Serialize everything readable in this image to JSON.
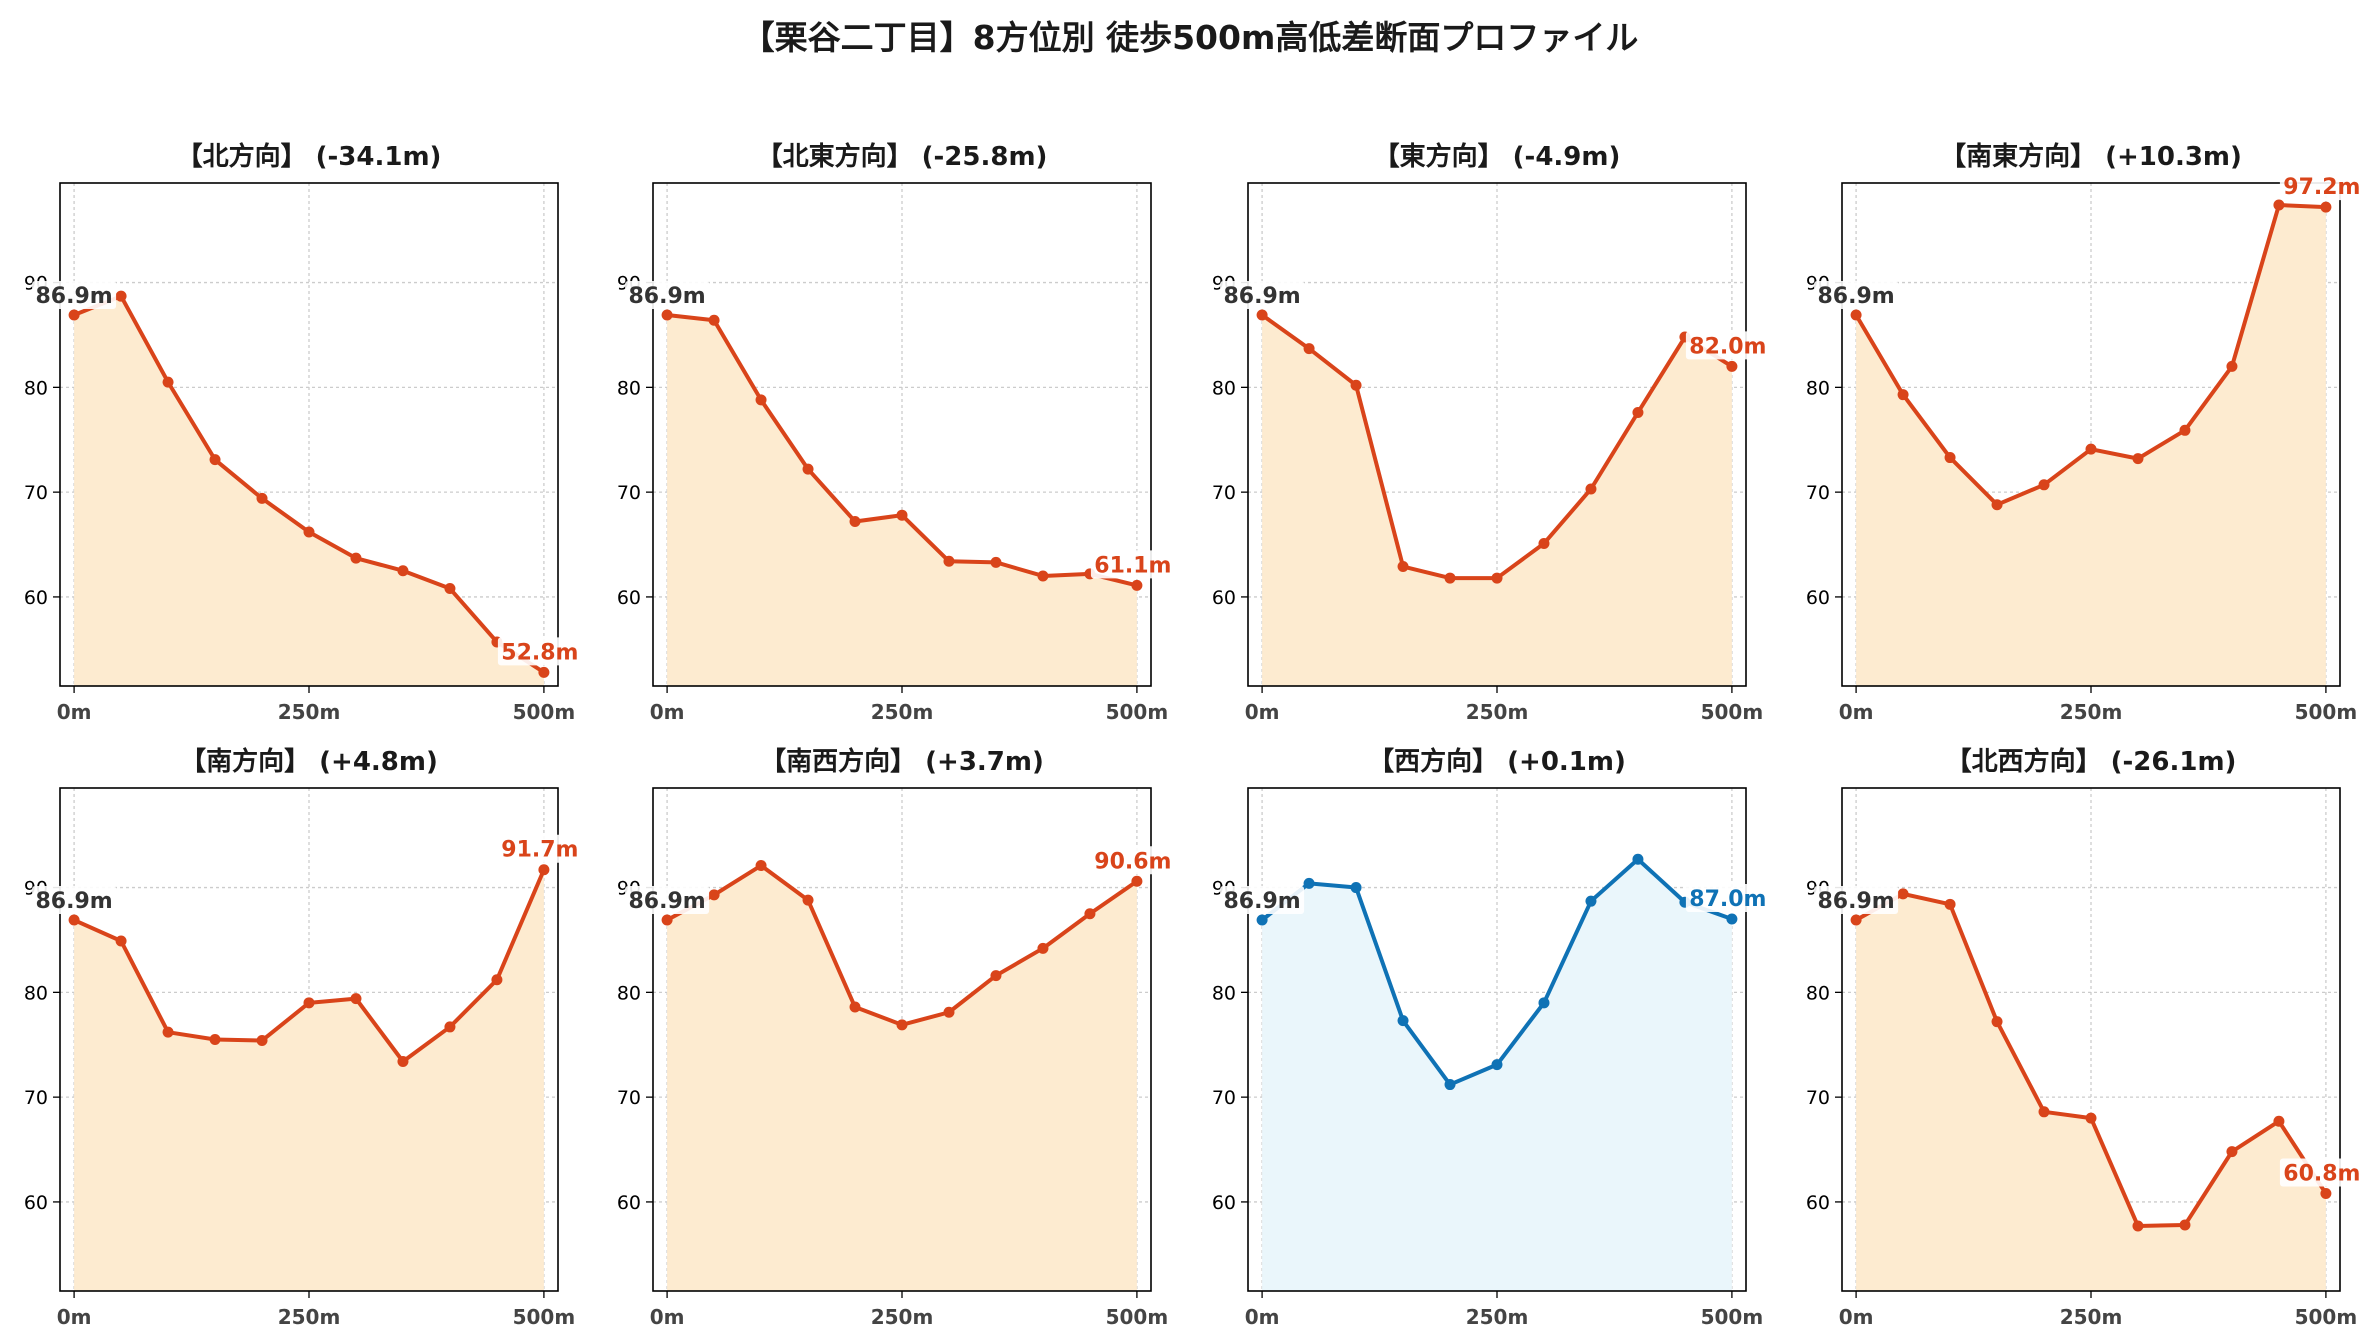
{
  "title": "【栗谷二丁目】8方位別 徒歩500m高低差断面プロファイル",
  "colors": {
    "downhill_line": "#d9441a",
    "downhill_fill": "#fdebd0",
    "flat_line": "#0f72b5",
    "flat_fill": "#eaf6fb",
    "start_label": "#333333",
    "grid": "#cccccc"
  },
  "chart_data": [
    {
      "type": "line",
      "title": "【北方向】 (-34.1m)",
      "style": "warm",
      "x": [
        0,
        50,
        100,
        150,
        200,
        250,
        300,
        350,
        400,
        450,
        500
      ],
      "values": [
        86.9,
        88.7,
        80.5,
        73.1,
        69.4,
        66.2,
        63.7,
        62.5,
        60.8,
        55.7,
        52.8
      ],
      "start_label": "86.9m",
      "end_label": "52.8m",
      "xticks": [
        0,
        250,
        500
      ],
      "xtick_labels": [
        "0m",
        "250m",
        "500m"
      ],
      "yticks": [
        60,
        70,
        80,
        90
      ],
      "ytick_labels": [
        "60",
        "70",
        "80",
        "90"
      ],
      "ylim": [
        51.5,
        99.5
      ],
      "xlim": [
        -15,
        515
      ],
      "grid": true
    },
    {
      "type": "line",
      "title": "【北東方向】 (-25.8m)",
      "style": "warm",
      "x": [
        0,
        50,
        100,
        150,
        200,
        250,
        300,
        350,
        400,
        450,
        500
      ],
      "values": [
        86.9,
        86.4,
        78.8,
        72.2,
        67.2,
        67.8,
        63.4,
        63.3,
        62.0,
        62.2,
        61.1
      ],
      "start_label": "86.9m",
      "end_label": "61.1m",
      "xticks": [
        0,
        250,
        500
      ],
      "xtick_labels": [
        "0m",
        "250m",
        "500m"
      ],
      "yticks": [
        60,
        70,
        80,
        90
      ],
      "ytick_labels": [
        "60",
        "70",
        "80",
        "90"
      ],
      "ylim": [
        51.5,
        99.5
      ],
      "xlim": [
        -15,
        515
      ],
      "grid": true
    },
    {
      "type": "line",
      "title": "【東方向】 (-4.9m)",
      "style": "warm",
      "x": [
        0,
        50,
        100,
        150,
        200,
        250,
        300,
        350,
        400,
        450,
        500
      ],
      "values": [
        86.9,
        83.7,
        80.2,
        62.9,
        61.8,
        61.8,
        65.1,
        70.3,
        77.6,
        84.8,
        82.0
      ],
      "start_label": "86.9m",
      "end_label": "82.0m",
      "xticks": [
        0,
        250,
        500
      ],
      "xtick_labels": [
        "0m",
        "250m",
        "500m"
      ],
      "yticks": [
        60,
        70,
        80,
        90
      ],
      "ytick_labels": [
        "60",
        "70",
        "80",
        "90"
      ],
      "ylim": [
        51.5,
        99.5
      ],
      "xlim": [
        -15,
        515
      ],
      "grid": true
    },
    {
      "type": "line",
      "title": "【南東方向】 (+10.3m)",
      "style": "warm",
      "x": [
        0,
        50,
        100,
        150,
        200,
        250,
        300,
        350,
        400,
        450,
        500
      ],
      "values": [
        86.9,
        79.3,
        73.3,
        68.8,
        70.7,
        74.1,
        73.2,
        75.9,
        82.0,
        97.4,
        97.2
      ],
      "start_label": "86.9m",
      "end_label": "97.2m",
      "xticks": [
        0,
        250,
        500
      ],
      "xtick_labels": [
        "0m",
        "250m",
        "500m"
      ],
      "yticks": [
        60,
        70,
        80,
        90
      ],
      "ytick_labels": [
        "60",
        "70",
        "80",
        "90"
      ],
      "ylim": [
        51.5,
        99.5
      ],
      "xlim": [
        -15,
        515
      ],
      "grid": true
    },
    {
      "type": "line",
      "title": "【南方向】 (+4.8m)",
      "style": "warm",
      "x": [
        0,
        50,
        100,
        150,
        200,
        250,
        300,
        350,
        400,
        450,
        500
      ],
      "values": [
        86.9,
        84.9,
        76.2,
        75.5,
        75.4,
        79.0,
        79.4,
        73.4,
        76.7,
        81.2,
        91.7
      ],
      "start_label": "86.9m",
      "end_label": "91.7m",
      "xticks": [
        0,
        250,
        500
      ],
      "xtick_labels": [
        "0m",
        "250m",
        "500m"
      ],
      "yticks": [
        60,
        70,
        80,
        90
      ],
      "ytick_labels": [
        "60",
        "70",
        "80",
        "90"
      ],
      "ylim": [
        51.5,
        99.5
      ],
      "xlim": [
        -15,
        515
      ],
      "grid": true
    },
    {
      "type": "line",
      "title": "【南西方向】 (+3.7m)",
      "style": "warm",
      "x": [
        0,
        50,
        100,
        150,
        200,
        250,
        300,
        350,
        400,
        450,
        500
      ],
      "values": [
        86.9,
        89.3,
        92.1,
        88.8,
        78.6,
        76.9,
        78.1,
        81.6,
        84.2,
        87.5,
        90.6
      ],
      "start_label": "86.9m",
      "end_label": "90.6m",
      "xticks": [
        0,
        250,
        500
      ],
      "xtick_labels": [
        "0m",
        "250m",
        "500m"
      ],
      "yticks": [
        60,
        70,
        80,
        90
      ],
      "ytick_labels": [
        "60",
        "70",
        "80",
        "90"
      ],
      "ylim": [
        51.5,
        99.5
      ],
      "xlim": [
        -15,
        515
      ],
      "grid": true
    },
    {
      "type": "line",
      "title": "【西方向】 (+0.1m)",
      "style": "cool",
      "x": [
        0,
        50,
        100,
        150,
        200,
        250,
        300,
        350,
        400,
        450,
        500
      ],
      "values": [
        86.9,
        90.4,
        90.0,
        77.3,
        71.2,
        73.1,
        79.0,
        88.7,
        92.7,
        88.6,
        87.0
      ],
      "start_label": "86.9m",
      "end_label": "87.0m",
      "xticks": [
        0,
        250,
        500
      ],
      "xtick_labels": [
        "0m",
        "250m",
        "500m"
      ],
      "yticks": [
        60,
        70,
        80,
        90
      ],
      "ytick_labels": [
        "60",
        "70",
        "80",
        "90"
      ],
      "ylim": [
        51.5,
        99.5
      ],
      "xlim": [
        -15,
        515
      ],
      "grid": true
    },
    {
      "type": "line",
      "title": "【北西方向】 (-26.1m)",
      "style": "warm",
      "x": [
        0,
        50,
        100,
        150,
        200,
        250,
        300,
        350,
        400,
        450,
        500
      ],
      "values": [
        86.9,
        89.4,
        88.4,
        77.2,
        68.6,
        68.0,
        57.7,
        57.8,
        64.8,
        67.7,
        60.8
      ],
      "start_label": "86.9m",
      "end_label": "60.8m",
      "xticks": [
        0,
        250,
        500
      ],
      "xtick_labels": [
        "0m",
        "250m",
        "500m"
      ],
      "yticks": [
        60,
        70,
        80,
        90
      ],
      "ytick_labels": [
        "60",
        "70",
        "80",
        "90"
      ],
      "ylim": [
        51.5,
        99.5
      ],
      "xlim": [
        -15,
        515
      ],
      "grid": true
    }
  ]
}
